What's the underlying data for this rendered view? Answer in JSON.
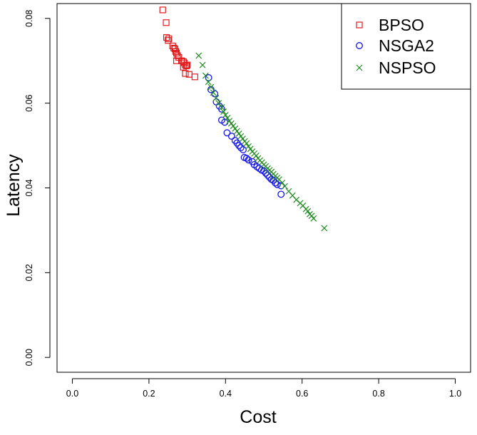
{
  "chart_data": {
    "type": "scatter",
    "title": "",
    "xlabel": "Cost",
    "ylabel": "Latency",
    "xlim": [
      -0.04,
      1.04
    ],
    "ylim": [
      -0.0035,
      0.0835
    ],
    "x_ticks": [
      "0.0",
      "0.2",
      "0.4",
      "0.6",
      "0.8",
      "1.0"
    ],
    "y_ticks": [
      "0.00",
      "0.02",
      "0.04",
      "0.06",
      "0.08"
    ],
    "grid": false,
    "legend_position": "top-right",
    "series": [
      {
        "name": "BPSO",
        "marker": "square",
        "color": "#e31a1c",
        "points": [
          [
            0.236,
            0.082
          ],
          [
            0.245,
            0.079
          ],
          [
            0.246,
            0.0755
          ],
          [
            0.252,
            0.0752
          ],
          [
            0.25,
            0.0748
          ],
          [
            0.262,
            0.0735
          ],
          [
            0.265,
            0.073
          ],
          [
            0.268,
            0.0728
          ],
          [
            0.27,
            0.0722
          ],
          [
            0.272,
            0.0718
          ],
          [
            0.275,
            0.0712
          ],
          [
            0.278,
            0.0708
          ],
          [
            0.272,
            0.07
          ],
          [
            0.285,
            0.07
          ],
          [
            0.29,
            0.0698
          ],
          [
            0.292,
            0.0695
          ],
          [
            0.295,
            0.069
          ],
          [
            0.298,
            0.0688
          ],
          [
            0.29,
            0.0685
          ],
          [
            0.3,
            0.069
          ],
          [
            0.295,
            0.067
          ],
          [
            0.305,
            0.0668
          ],
          [
            0.32,
            0.0662
          ]
        ]
      },
      {
        "name": "NSGA2",
        "marker": "circle",
        "color": "#1515e8",
        "points": [
          [
            0.356,
            0.066
          ],
          [
            0.362,
            0.0632
          ],
          [
            0.372,
            0.0622
          ],
          [
            0.376,
            0.0603
          ],
          [
            0.384,
            0.0593
          ],
          [
            0.39,
            0.0586
          ],
          [
            0.39,
            0.056
          ],
          [
            0.398,
            0.0555
          ],
          [
            0.404,
            0.053
          ],
          [
            0.416,
            0.0522
          ],
          [
            0.425,
            0.0512
          ],
          [
            0.43,
            0.0506
          ],
          [
            0.435,
            0.05
          ],
          [
            0.44,
            0.0495
          ],
          [
            0.446,
            0.049
          ],
          [
            0.449,
            0.0472
          ],
          [
            0.455,
            0.047
          ],
          [
            0.46,
            0.0466
          ],
          [
            0.47,
            0.0462
          ],
          [
            0.475,
            0.0455
          ],
          [
            0.482,
            0.045
          ],
          [
            0.488,
            0.0446
          ],
          [
            0.494,
            0.0442
          ],
          [
            0.5,
            0.044
          ],
          [
            0.505,
            0.0435
          ],
          [
            0.51,
            0.043
          ],
          [
            0.515,
            0.0425
          ],
          [
            0.52,
            0.042
          ],
          [
            0.525,
            0.0418
          ],
          [
            0.53,
            0.0412
          ],
          [
            0.535,
            0.0408
          ],
          [
            0.545,
            0.0405
          ],
          [
            0.545,
            0.0385
          ]
        ]
      },
      {
        "name": "NSPSO",
        "marker": "x",
        "color": "#228b22",
        "points": [
          [
            0.33,
            0.0712
          ],
          [
            0.34,
            0.069
          ],
          [
            0.348,
            0.0665
          ],
          [
            0.355,
            0.065
          ],
          [
            0.362,
            0.0638
          ],
          [
            0.368,
            0.0625
          ],
          [
            0.375,
            0.0612
          ],
          [
            0.382,
            0.06
          ],
          [
            0.39,
            0.059
          ],
          [
            0.395,
            0.058
          ],
          [
            0.4,
            0.0572
          ],
          [
            0.405,
            0.0565
          ],
          [
            0.41,
            0.0558
          ],
          [
            0.415,
            0.0552
          ],
          [
            0.42,
            0.0546
          ],
          [
            0.425,
            0.054
          ],
          [
            0.43,
            0.0534
          ],
          [
            0.435,
            0.0528
          ],
          [
            0.44,
            0.0522
          ],
          [
            0.445,
            0.0516
          ],
          [
            0.45,
            0.051
          ],
          [
            0.455,
            0.0505
          ],
          [
            0.46,
            0.0498
          ],
          [
            0.465,
            0.0492
          ],
          [
            0.47,
            0.0486
          ],
          [
            0.475,
            0.0481
          ],
          [
            0.48,
            0.0476
          ],
          [
            0.485,
            0.047
          ],
          [
            0.49,
            0.0465
          ],
          [
            0.495,
            0.046
          ],
          [
            0.5,
            0.0455
          ],
          [
            0.505,
            0.0451
          ],
          [
            0.51,
            0.0446
          ],
          [
            0.515,
            0.0442
          ],
          [
            0.52,
            0.0438
          ],
          [
            0.525,
            0.0433
          ],
          [
            0.53,
            0.0428
          ],
          [
            0.535,
            0.0424
          ],
          [
            0.54,
            0.042
          ],
          [
            0.548,
            0.0412
          ],
          [
            0.555,
            0.0404
          ],
          [
            0.565,
            0.0392
          ],
          [
            0.575,
            0.0382
          ],
          [
            0.585,
            0.0372
          ],
          [
            0.595,
            0.0364
          ],
          [
            0.602,
            0.0358
          ],
          [
            0.61,
            0.035
          ],
          [
            0.615,
            0.0345
          ],
          [
            0.62,
            0.0338
          ],
          [
            0.625,
            0.0334
          ],
          [
            0.63,
            0.0328
          ],
          [
            0.658,
            0.0305
          ]
        ]
      }
    ]
  }
}
